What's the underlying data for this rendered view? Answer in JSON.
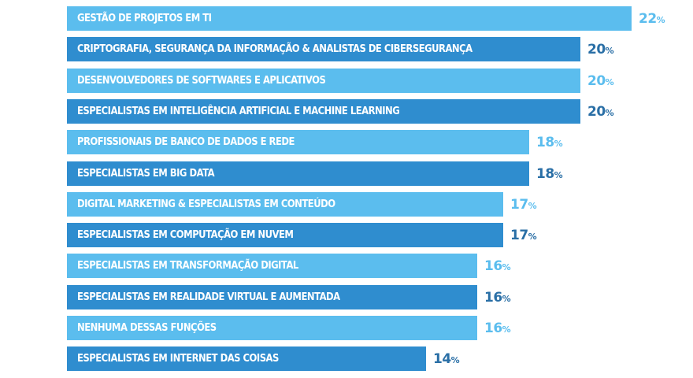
{
  "chart_data": {
    "type": "bar",
    "orientation": "horizontal",
    "categories": [
      "GESTÃO DE PROJETOS EM TI",
      "CRIPTOGRAFIA, SEGURANÇA DA INFORMAÇÃO & ANALISTAS DE CIBERSEGURANÇA",
      "DESENVOLVEDORES DE SOFTWARES E APLICATIVOS",
      "ESPECIALISTAS EM INTELIGÊNCIA ARTIFICIAL E MACHINE LEARNING",
      "PROFISSIONAIS DE BANCO DE DADOS E REDE",
      "ESPECIALISTAS EM BIG DATA",
      "DIGITAL MARKETING & ESPECIALISTAS EM CONTEÚDO",
      "ESPECIALISTAS EM COMPUTAÇÃO EM NUVEM",
      "ESPECIALISTAS EM TRANSFORMAÇÃO DIGITAL",
      "ESPECIALISTAS EM REALIDADE VIRTUAL E AUMENTADA",
      "NENHUMA DESSAS FUNÇÕES",
      "ESPECIALISTAS EM INTERNET DAS COISAS"
    ],
    "values": [
      22,
      20,
      20,
      20,
      18,
      18,
      17,
      17,
      16,
      16,
      16,
      14
    ],
    "value_suffix": "%",
    "xlim": [
      0,
      22
    ],
    "grid": false,
    "legend": "none",
    "colors": {
      "light": "#5bbdee",
      "dark": "#2f8dcf",
      "light_text": "#5bbdee",
      "dark_text": "#2a6fa6"
    }
  }
}
